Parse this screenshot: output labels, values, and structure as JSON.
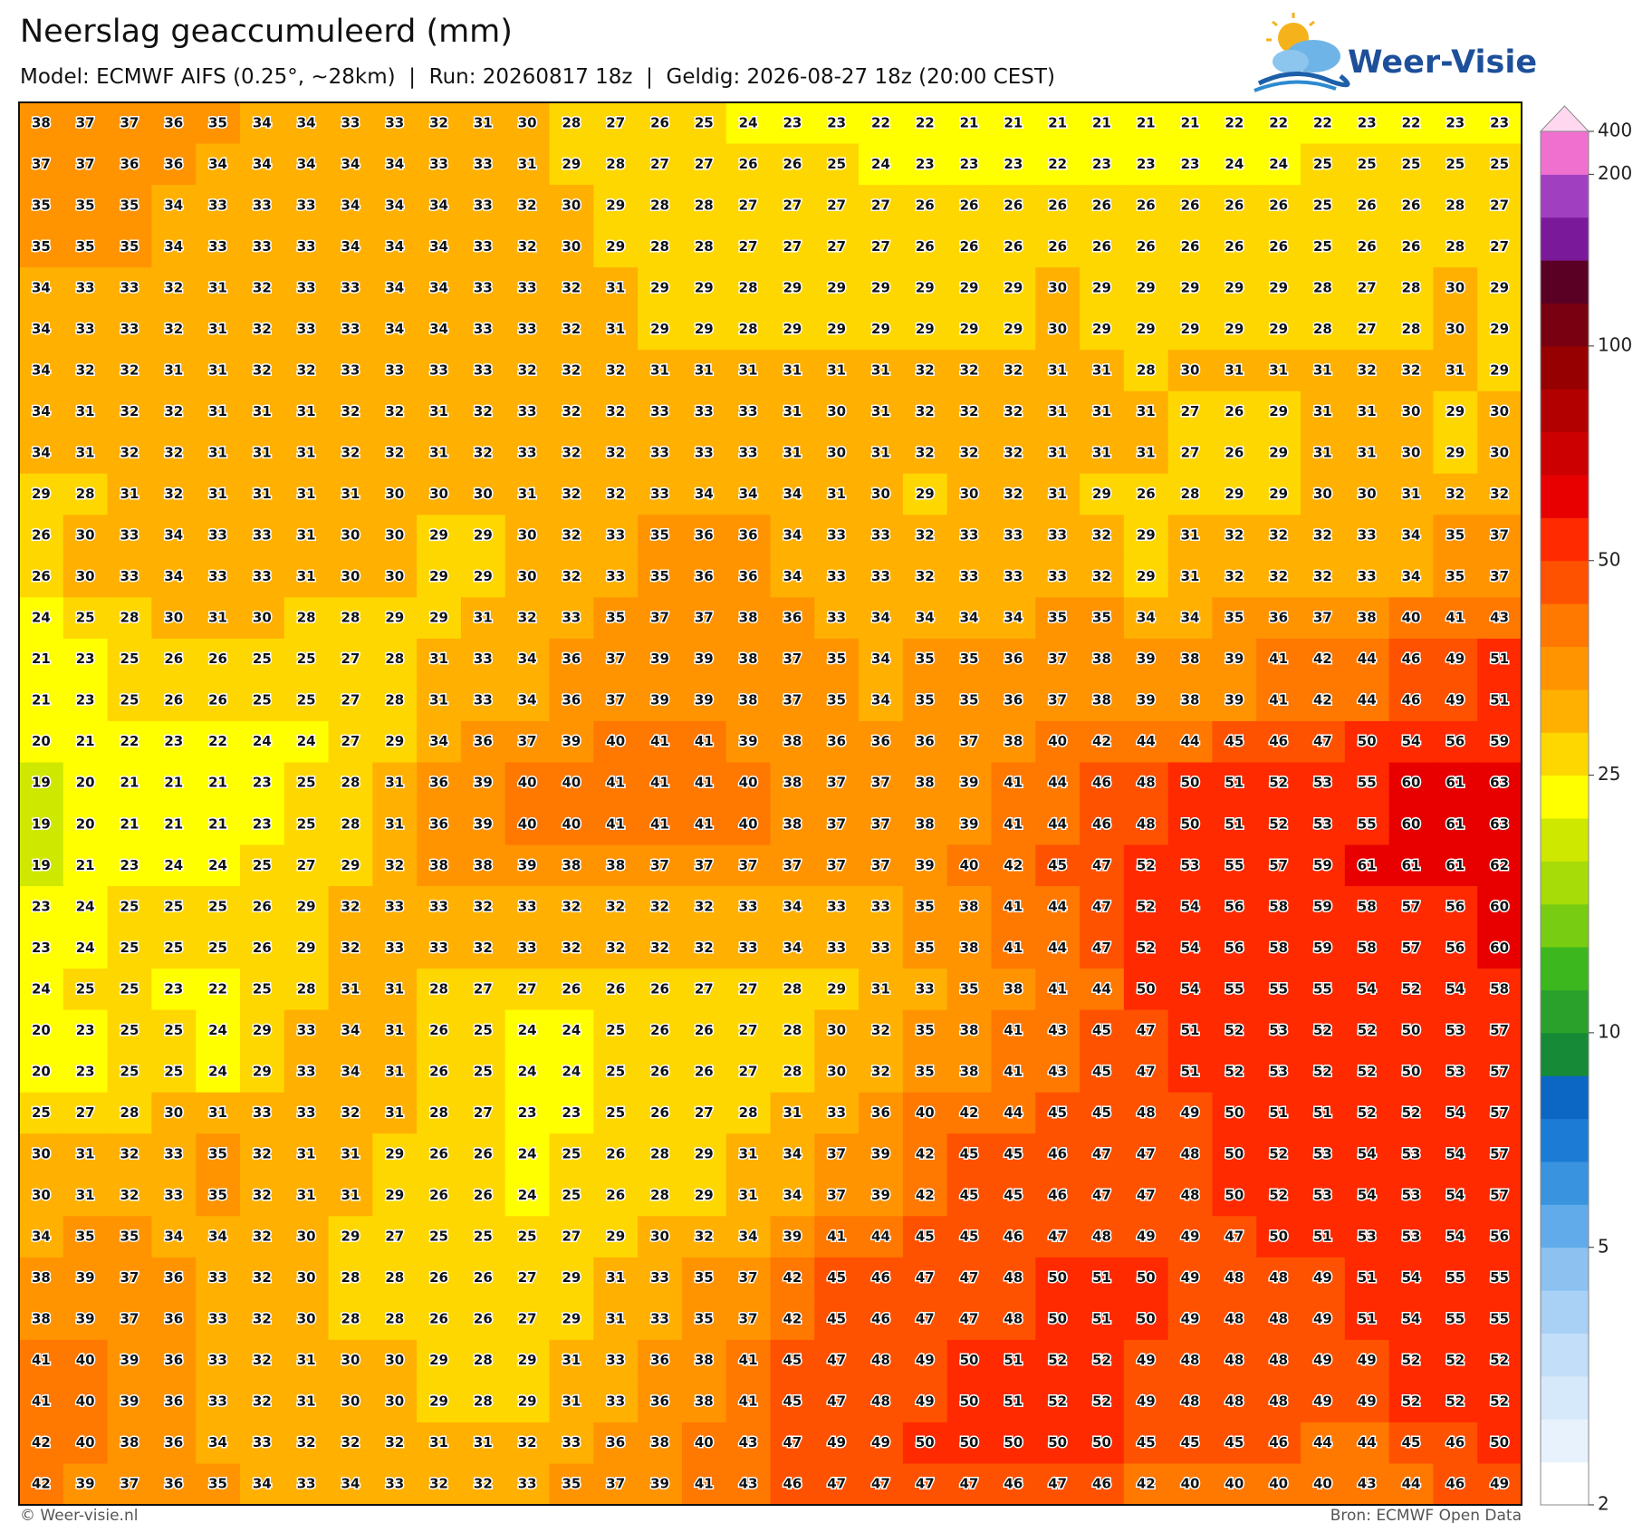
{
  "header": {
    "title": "Neerslag geaccumuleerd (mm)",
    "subtitle": "Model: ECMWF AIFS (0.25°, ~28km)  |  Run: 20260817 18z  |  Geldig: 2026-08-27 18z (20:00 CEST)"
  },
  "logo": {
    "text": "Weer-Visie"
  },
  "map": {
    "values": [
      [
        38,
        37,
        37,
        36,
        35,
        34,
        34,
        33,
        33,
        32,
        31,
        30,
        28,
        27,
        26,
        25,
        24,
        23,
        23,
        22,
        22,
        21,
        21,
        21,
        21,
        21,
        21,
        22,
        22,
        22,
        23,
        22,
        23,
        23
      ],
      [
        37,
        37,
        36,
        36,
        34,
        34,
        34,
        34,
        34,
        33,
        33,
        31,
        29,
        28,
        27,
        27,
        26,
        26,
        25,
        24,
        23,
        23,
        23,
        22,
        23,
        23,
        23,
        24,
        24,
        25,
        25,
        25,
        25,
        25
      ],
      [
        35,
        35,
        35,
        34,
        33,
        33,
        33,
        34,
        34,
        34,
        33,
        32,
        30,
        29,
        28,
        28,
        27,
        27,
        27,
        27,
        26,
        26,
        26,
        26,
        26,
        26,
        26,
        26,
        26,
        25,
        26,
        26,
        28,
        27
      ],
      [
        35,
        35,
        35,
        34,
        33,
        33,
        33,
        34,
        34,
        34,
        33,
        32,
        30,
        29,
        28,
        28,
        27,
        27,
        27,
        27,
        26,
        26,
        26,
        26,
        26,
        26,
        26,
        26,
        26,
        25,
        26,
        26,
        28,
        27
      ],
      [
        34,
        33,
        33,
        32,
        31,
        32,
        33,
        33,
        34,
        34,
        33,
        33,
        32,
        31,
        29,
        29,
        28,
        29,
        29,
        29,
        29,
        29,
        29,
        30,
        29,
        29,
        29,
        29,
        29,
        28,
        27,
        28,
        30,
        29
      ],
      [
        34,
        33,
        33,
        32,
        31,
        32,
        33,
        33,
        34,
        34,
        33,
        33,
        32,
        31,
        29,
        29,
        28,
        29,
        29,
        29,
        29,
        29,
        29,
        30,
        29,
        29,
        29,
        29,
        29,
        28,
        27,
        28,
        30,
        29
      ],
      [
        34,
        32,
        32,
        31,
        31,
        32,
        32,
        33,
        33,
        33,
        33,
        32,
        32,
        32,
        31,
        31,
        31,
        31,
        31,
        31,
        32,
        32,
        32,
        31,
        31,
        28,
        30,
        31,
        31,
        31,
        32,
        32,
        31,
        29
      ],
      [
        34,
        31,
        32,
        32,
        31,
        31,
        31,
        32,
        32,
        31,
        32,
        33,
        32,
        32,
        33,
        33,
        33,
        31,
        30,
        31,
        32,
        32,
        32,
        31,
        31,
        31,
        27,
        26,
        29,
        31,
        31,
        30,
        29,
        30
      ],
      [
        34,
        31,
        32,
        32,
        31,
        31,
        31,
        32,
        32,
        31,
        32,
        33,
        32,
        32,
        33,
        33,
        33,
        31,
        30,
        31,
        32,
        32,
        32,
        31,
        31,
        31,
        27,
        26,
        29,
        31,
        31,
        30,
        29,
        30
      ],
      [
        29,
        28,
        31,
        32,
        31,
        31,
        31,
        31,
        30,
        30,
        30,
        31,
        32,
        32,
        33,
        34,
        34,
        34,
        31,
        30,
        29,
        30,
        32,
        31,
        29,
        26,
        28,
        29,
        29,
        30,
        30,
        31,
        32,
        32
      ],
      [
        26,
        30,
        33,
        34,
        33,
        33,
        31,
        30,
        30,
        29,
        29,
        30,
        32,
        33,
        35,
        36,
        36,
        34,
        33,
        33,
        32,
        33,
        33,
        33,
        32,
        29,
        31,
        32,
        32,
        32,
        33,
        34,
        35,
        37
      ],
      [
        26,
        30,
        33,
        34,
        33,
        33,
        31,
        30,
        30,
        29,
        29,
        30,
        32,
        33,
        35,
        36,
        36,
        34,
        33,
        33,
        32,
        33,
        33,
        33,
        32,
        29,
        31,
        32,
        32,
        32,
        33,
        34,
        35,
        37
      ],
      [
        24,
        25,
        28,
        30,
        31,
        30,
        28,
        28,
        29,
        29,
        31,
        32,
        33,
        35,
        37,
        37,
        38,
        36,
        33,
        34,
        34,
        34,
        34,
        35,
        35,
        34,
        34,
        35,
        36,
        37,
        38,
        40,
        41,
        43
      ],
      [
        21,
        23,
        25,
        26,
        26,
        25,
        25,
        27,
        28,
        31,
        33,
        34,
        36,
        37,
        39,
        39,
        38,
        37,
        35,
        34,
        35,
        35,
        36,
        37,
        38,
        39,
        38,
        39,
        41,
        42,
        44,
        46,
        49,
        51
      ],
      [
        21,
        23,
        25,
        26,
        26,
        25,
        25,
        27,
        28,
        31,
        33,
        34,
        36,
        37,
        39,
        39,
        38,
        37,
        35,
        34,
        35,
        35,
        36,
        37,
        38,
        39,
        38,
        39,
        41,
        42,
        44,
        46,
        49,
        51
      ],
      [
        20,
        21,
        22,
        23,
        22,
        24,
        24,
        27,
        29,
        34,
        36,
        37,
        39,
        40,
        41,
        41,
        39,
        38,
        36,
        36,
        36,
        37,
        38,
        40,
        42,
        44,
        44,
        45,
        46,
        47,
        50,
        54,
        56,
        59
      ],
      [
        19,
        20,
        21,
        21,
        21,
        23,
        25,
        28,
        31,
        36,
        39,
        40,
        40,
        41,
        41,
        41,
        40,
        38,
        37,
        37,
        38,
        39,
        41,
        44,
        46,
        48,
        50,
        51,
        52,
        53,
        55,
        60,
        61,
        63
      ],
      [
        19,
        20,
        21,
        21,
        21,
        23,
        25,
        28,
        31,
        36,
        39,
        40,
        40,
        41,
        41,
        41,
        40,
        38,
        37,
        37,
        38,
        39,
        41,
        44,
        46,
        48,
        50,
        51,
        52,
        53,
        55,
        60,
        61,
        63
      ],
      [
        19,
        21,
        23,
        24,
        24,
        25,
        27,
        29,
        32,
        38,
        38,
        39,
        38,
        38,
        37,
        37,
        37,
        37,
        37,
        37,
        39,
        40,
        42,
        45,
        47,
        52,
        53,
        55,
        57,
        59,
        61,
        61,
        61,
        62
      ],
      [
        23,
        24,
        25,
        25,
        25,
        26,
        29,
        32,
        33,
        33,
        32,
        33,
        32,
        32,
        32,
        32,
        33,
        34,
        33,
        33,
        35,
        38,
        41,
        44,
        47,
        52,
        54,
        56,
        58,
        59,
        58,
        57,
        56,
        60
      ],
      [
        23,
        24,
        25,
        25,
        25,
        26,
        29,
        32,
        33,
        33,
        32,
        33,
        32,
        32,
        32,
        32,
        33,
        34,
        33,
        33,
        35,
        38,
        41,
        44,
        47,
        52,
        54,
        56,
        58,
        59,
        58,
        57,
        56,
        60
      ],
      [
        24,
        25,
        25,
        23,
        22,
        25,
        28,
        31,
        31,
        28,
        27,
        27,
        26,
        26,
        26,
        27,
        27,
        28,
        29,
        31,
        33,
        35,
        38,
        41,
        44,
        50,
        54,
        55,
        55,
        55,
        54,
        52,
        54,
        58
      ],
      [
        20,
        23,
        25,
        25,
        24,
        29,
        33,
        34,
        31,
        26,
        25,
        24,
        24,
        25,
        26,
        26,
        27,
        28,
        30,
        32,
        35,
        38,
        41,
        43,
        45,
        47,
        51,
        52,
        53,
        52,
        52,
        50,
        53,
        57
      ],
      [
        20,
        23,
        25,
        25,
        24,
        29,
        33,
        34,
        31,
        26,
        25,
        24,
        24,
        25,
        26,
        26,
        27,
        28,
        30,
        32,
        35,
        38,
        41,
        43,
        45,
        47,
        51,
        52,
        53,
        52,
        52,
        50,
        53,
        57
      ],
      [
        25,
        27,
        28,
        30,
        31,
        33,
        33,
        32,
        31,
        28,
        27,
        23,
        23,
        25,
        26,
        27,
        28,
        31,
        33,
        36,
        40,
        42,
        44,
        45,
        45,
        48,
        49,
        50,
        51,
        51,
        52,
        52,
        54,
        57
      ],
      [
        30,
        31,
        32,
        33,
        35,
        32,
        31,
        31,
        29,
        26,
        26,
        24,
        25,
        26,
        28,
        29,
        31,
        34,
        37,
        39,
        42,
        45,
        45,
        46,
        47,
        47,
        48,
        50,
        52,
        53,
        54,
        53,
        54,
        57
      ],
      [
        30,
        31,
        32,
        33,
        35,
        32,
        31,
        31,
        29,
        26,
        26,
        24,
        25,
        26,
        28,
        29,
        31,
        34,
        37,
        39,
        42,
        45,
        45,
        46,
        47,
        47,
        48,
        50,
        52,
        53,
        54,
        53,
        54,
        57
      ],
      [
        34,
        35,
        35,
        34,
        34,
        32,
        30,
        29,
        27,
        25,
        25,
        25,
        27,
        29,
        30,
        32,
        34,
        39,
        41,
        44,
        45,
        45,
        46,
        47,
        48,
        49,
        49,
        47,
        50,
        51,
        53,
        53,
        54,
        56
      ],
      [
        38,
        39,
        37,
        36,
        33,
        32,
        30,
        28,
        28,
        26,
        26,
        27,
        29,
        31,
        33,
        35,
        37,
        42,
        45,
        46,
        47,
        47,
        48,
        50,
        51,
        50,
        49,
        48,
        48,
        49,
        51,
        54,
        55,
        55
      ],
      [
        38,
        39,
        37,
        36,
        33,
        32,
        30,
        28,
        28,
        26,
        26,
        27,
        29,
        31,
        33,
        35,
        37,
        42,
        45,
        46,
        47,
        47,
        48,
        50,
        51,
        50,
        49,
        48,
        48,
        49,
        51,
        54,
        55,
        55
      ],
      [
        41,
        40,
        39,
        36,
        33,
        32,
        31,
        30,
        30,
        29,
        28,
        29,
        31,
        33,
        36,
        38,
        41,
        45,
        47,
        48,
        49,
        50,
        51,
        52,
        52,
        49,
        48,
        48,
        48,
        49,
        49,
        52,
        52,
        52
      ],
      [
        41,
        40,
        39,
        36,
        33,
        32,
        31,
        30,
        30,
        29,
        28,
        29,
        31,
        33,
        36,
        38,
        41,
        45,
        47,
        48,
        49,
        50,
        51,
        52,
        52,
        49,
        48,
        48,
        48,
        49,
        49,
        52,
        52,
        52
      ],
      [
        42,
        40,
        38,
        36,
        34,
        33,
        32,
        32,
        32,
        31,
        31,
        32,
        33,
        36,
        38,
        40,
        43,
        47,
        49,
        49,
        50,
        50,
        50,
        50,
        50,
        45,
        45,
        45,
        46,
        44,
        44,
        45,
        46,
        50
      ],
      [
        42,
        39,
        37,
        36,
        35,
        34,
        33,
        34,
        33,
        32,
        32,
        33,
        35,
        37,
        39,
        41,
        43,
        46,
        47,
        47,
        47,
        47,
        46,
        47,
        46,
        42,
        40,
        40,
        40,
        40,
        43,
        44,
        46,
        49
      ]
    ]
  },
  "colorbar": {
    "ticks": [
      400,
      200,
      100,
      50,
      25,
      10,
      5,
      2
    ]
  },
  "footer": {
    "left": "© Weer-visie.nl",
    "right": "Bron: ECMWF Open Data"
  }
}
